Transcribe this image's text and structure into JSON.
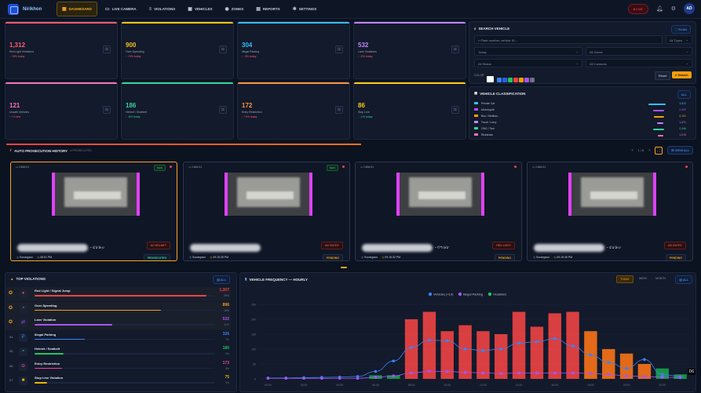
{
  "app": {
    "name": "Nirikhon"
  },
  "nav": [
    {
      "label": "DASHBOARD",
      "icon": "dashboard-icon",
      "glyph": "▦",
      "active": true
    },
    {
      "label": "LIVE CAMERA",
      "icon": "camera-icon",
      "glyph": "▭",
      "active": false
    },
    {
      "label": "VIOLATIONS",
      "icon": "document-icon",
      "glyph": "≡",
      "active": false
    },
    {
      "label": "VEHICLES",
      "icon": "car-icon",
      "glyph": "▣",
      "active": false
    },
    {
      "label": "ZONES",
      "icon": "pin-icon",
      "glyph": "◉",
      "active": false
    },
    {
      "label": "REPORTS",
      "icon": "chart-icon",
      "glyph": "▤",
      "active": false
    },
    {
      "label": "SETTINGS",
      "icon": "gear-icon",
      "glyph": "✻",
      "active": false
    }
  ],
  "header": {
    "live_label": "LIVE",
    "avatar_initials": "AD"
  },
  "stats": [
    {
      "value": "1,312",
      "label": "Red Light Violations",
      "trend": "↑ +8% today",
      "color": "#ff5a6e",
      "trend_color": "#ff5a6e"
    },
    {
      "value": "900",
      "label": "Over-Speeding",
      "trend": "↑ +5% today",
      "color": "#f5c518",
      "trend_color": "#ff5a6e"
    },
    {
      "value": "304",
      "label": "Illegal Parking",
      "trend": "↑ -3% today",
      "color": "#38bdf8",
      "trend_color": "#ff5a6e"
    },
    {
      "value": "532",
      "label": "Lane Violations",
      "trend": "↑ -5% today",
      "color": "#c084fc",
      "trend_color": "#ff5a6e"
    },
    {
      "value": "121",
      "label": "Unsafe Vehicles",
      "trend": "↑ +4 new",
      "color": "#f472b6",
      "trend_color": "#ff5a6e"
    },
    {
      "value": "186",
      "label": "Helmet / Seatbelt",
      "trend": "↑ -6% today",
      "color": "#34d399",
      "trend_color": "#34d399"
    },
    {
      "value": "172",
      "label": "Entry Restriction",
      "trend": "↑ +2% today",
      "color": "#fb923c",
      "trend_color": "#ff5a6e"
    },
    {
      "value": "86",
      "label": "Stop Line",
      "trend": "↑ -1% today",
      "color": "#facc15",
      "trend_color": "#34d399"
    }
  ],
  "search": {
    "title": "SEARCH VEHICLE",
    "scan_label": "SCAN",
    "placeholder": "Plate number, vehicle ID...",
    "type_select": "All Types",
    "date_select": "Today",
    "zone_select": "All Zones",
    "status_select": "All Status",
    "camera_select": "All Cameras",
    "color_label": "COLOR",
    "reset_label": "Reset",
    "search_label": "Search",
    "colors": [
      "#ffffff",
      "#3b82f6",
      "#2563eb",
      "#22c55e",
      "#ef4444",
      "#f59e0b",
      "#a855f7",
      "#6b7280"
    ]
  },
  "classification": {
    "title": "VEHICLE CLASSIFICATION",
    "all_label": "ALL",
    "rows": [
      {
        "label": "Private Car",
        "count": "3,812",
        "color": "#38bdf8",
        "fraction": 0.9
      },
      {
        "label": "Motorcycle",
        "count": "2,490",
        "color": "#a855f7",
        "fraction": 0.6
      },
      {
        "label": "Bus / Minibus",
        "count": "2,191",
        "color": "#f59e0b",
        "fraction": 0.55
      },
      {
        "label": "Truck / Lorry",
        "count": "1,471",
        "color": "#c084fc",
        "fraction": 0.35
      },
      {
        "label": "CNG / Taxi",
        "count": "2,346",
        "color": "#34d399",
        "fraction": 0.58
      },
      {
        "label": "Rickshaw",
        "count": "1,076",
        "color": "#f472b6",
        "fraction": 0.28
      }
    ]
  },
  "prosecution": {
    "title": "AUTO PROSECUTION HISTORY",
    "subtitle": "● PROSECUTED",
    "page_indicator": "1 / 8",
    "view_all": "VIEW ALL",
    "cards": [
      {
        "camera": "CAM-01",
        "badge": "NEW",
        "plate_suffix": "-৫৮৯০",
        "zone": "Sonargaon",
        "time": "08:01 PM",
        "reason": "NO HELMET",
        "status": "PROSECUTED",
        "border": "#f5a623",
        "status_color": "#34d399"
      },
      {
        "camera": "CAM-01",
        "badge": "NEW",
        "plate_suffix": "",
        "zone": "Sonargaon",
        "time": "09:15:28 PM",
        "reason": "NO ENTRY",
        "status": "PENDING",
        "border": "#2b3650",
        "status_color": "#f59e0b"
      },
      {
        "camera": "CAM-01",
        "badge": "",
        "plate_suffix": "-৩৭৬৮",
        "zone": "Sonargaon",
        "time": "09:15:32 PM",
        "reason": "RED LIGHT",
        "status": "PENDING",
        "border": "#2b3650",
        "status_color": "#f59e0b"
      },
      {
        "camera": "CAM-01",
        "badge": "",
        "plate_suffix": "-৫৮৯০",
        "zone": "Sonargaon",
        "time": "09:15:48 PM",
        "reason": "NO ENTRY",
        "status": "PENDING",
        "border": "#2b3650",
        "status_color": "#f59e0b"
      }
    ]
  },
  "top_violations": {
    "title": "TOP VIOLATIONS",
    "all_label": "ALL",
    "rows": [
      {
        "rank": "",
        "icon": "traffic-light-icon",
        "glyph": "●",
        "name": "Red Light / Signal Jump",
        "count": "1,307",
        "pct": "26%",
        "color": "#ef4444",
        "fraction": 0.95
      },
      {
        "rank": "",
        "icon": "speed-icon",
        "glyph": "◔",
        "name": "Over-Speeding",
        "count": "896",
        "pct": "18%",
        "color": "#f59e0b",
        "fraction": 0.7
      },
      {
        "rank": "",
        "icon": "lane-icon",
        "glyph": "⇄",
        "name": "Lane Violation",
        "count": "532",
        "pct": "11%",
        "color": "#a855f7",
        "fraction": 0.43
      },
      {
        "rank": "04",
        "icon": "parking-icon",
        "glyph": "P",
        "name": "Illegal Parking",
        "count": "326",
        "pct": "7%",
        "color": "#3b82f6",
        "fraction": 0.28
      },
      {
        "rank": "05",
        "icon": "helmet-icon",
        "glyph": "◓",
        "name": "Helmet / Seatbelt",
        "count": "180",
        "pct": "4%",
        "color": "#22c55e",
        "fraction": 0.16
      },
      {
        "rank": "06",
        "icon": "no-entry-icon",
        "glyph": "⊖",
        "name": "Entry Restriction",
        "count": "173",
        "pct": "3%",
        "color": "#ec4899",
        "fraction": 0.15
      },
      {
        "rank": "07",
        "icon": "stop-icon",
        "glyph": "■",
        "name": "Stop Line Violation",
        "count": "75",
        "pct": "1%",
        "color": "#eab308",
        "fraction": 0.07
      }
    ]
  },
  "frequency": {
    "title": "VEHICLE FREQUENCY — HOURLY",
    "tabs": [
      "TODAY",
      "WEEK",
      "MONTH"
    ],
    "all_label": "ALL",
    "corner_label": "D6"
  },
  "chart_data": {
    "type": "bar",
    "title": "VEHICLE FREQUENCY — HOURLY",
    "legend": [
      "Vehicles (×10)",
      "Illegal Parking",
      "Violations"
    ],
    "legend_colors": [
      "#3b82f6",
      "#a855f7",
      "#22c55e"
    ],
    "ylim": [
      0,
      250
    ],
    "y_ticks": [
      0,
      50,
      100,
      150,
      200,
      250
    ],
    "categories": [
      "00:00",
      "01:00",
      "02:00",
      "03:00",
      "04:00",
      "05:00",
      "06:00",
      "07:00",
      "08:00",
      "09:00",
      "10:00",
      "11:00",
      "12:00",
      "13:00",
      "14:00",
      "15:00",
      "16:00",
      "17:00",
      "18:00",
      "19:00",
      "20:00",
      "21:00",
      "22:00",
      "23:00"
    ],
    "x_tick_labels": [
      "00:00",
      "",
      "02:00",
      "",
      "04:00",
      "",
      "06:00",
      "",
      "08:00",
      "",
      "10:00",
      "",
      "12:00",
      "",
      "14:00",
      "",
      "16:00",
      "",
      "18:00",
      "",
      "20:00",
      "",
      "22:00",
      ""
    ],
    "bars": [
      2,
      2,
      2,
      2,
      2,
      4,
      12,
      12,
      200,
      225,
      160,
      180,
      160,
      150,
      225,
      175,
      220,
      225,
      160,
      100,
      85,
      50,
      35,
      15
    ],
    "bar_colors": [
      "#1a2236",
      "#1a2236",
      "#1a2236",
      "#1a2236",
      "#1a2236",
      "#1a2236",
      "#16a34a",
      "#16a34a",
      "#ef4444",
      "#ef4444",
      "#ef4444",
      "#ef4444",
      "#ef4444",
      "#ef4444",
      "#ef4444",
      "#ef4444",
      "#ef4444",
      "#ef4444",
      "#f97316",
      "#f97316",
      "#f97316",
      "#f97316",
      "#16a34a",
      "#16a34a"
    ],
    "series": [
      {
        "name": "Vehicles (×10)",
        "color": "#3b82f6",
        "values": [
          3,
          3,
          4,
          5,
          6,
          8,
          25,
          60,
          105,
          130,
          128,
          100,
          95,
          100,
          120,
          125,
          135,
          110,
          80,
          55,
          35,
          65,
          15,
          8
        ]
      },
      {
        "name": "Illegal Parking",
        "color": "#a855f7",
        "values": [
          2,
          2,
          2,
          2,
          2,
          2,
          5,
          10,
          20,
          25,
          25,
          22,
          20,
          18,
          20,
          20,
          20,
          20,
          18,
          15,
          10,
          8,
          6,
          4
        ]
      }
    ]
  }
}
